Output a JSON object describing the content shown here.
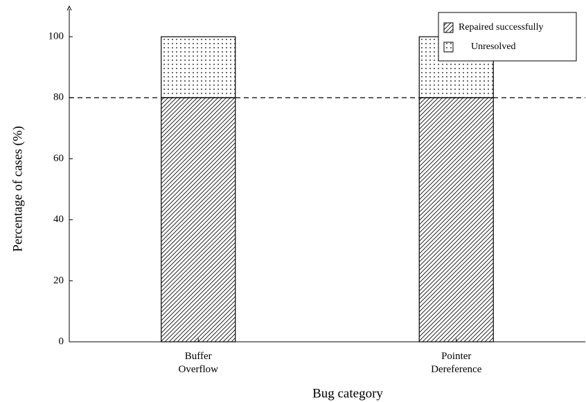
{
  "chart_data": {
    "type": "stacked_bar",
    "x_label": "Bug category",
    "y_label": "Percentage of cases (%)",
    "categories": [
      "Buffer Overflow",
      "Pointer Dereference"
    ],
    "series": [
      {
        "name": "Repaired successfully",
        "color": "#000000",
        "pattern": "hatch",
        "values": [
          80,
          80
        ]
      },
      {
        "name": "Unresolved",
        "color": "#000000",
        "pattern": "dots",
        "values": [
          20,
          20
        ]
      }
    ],
    "ylim": [
      0,
      110
    ],
    "yticks": [
      0,
      20,
      40,
      60,
      80,
      100
    ],
    "reference_line": 80,
    "legend": "top-right",
    "grid": false
  }
}
